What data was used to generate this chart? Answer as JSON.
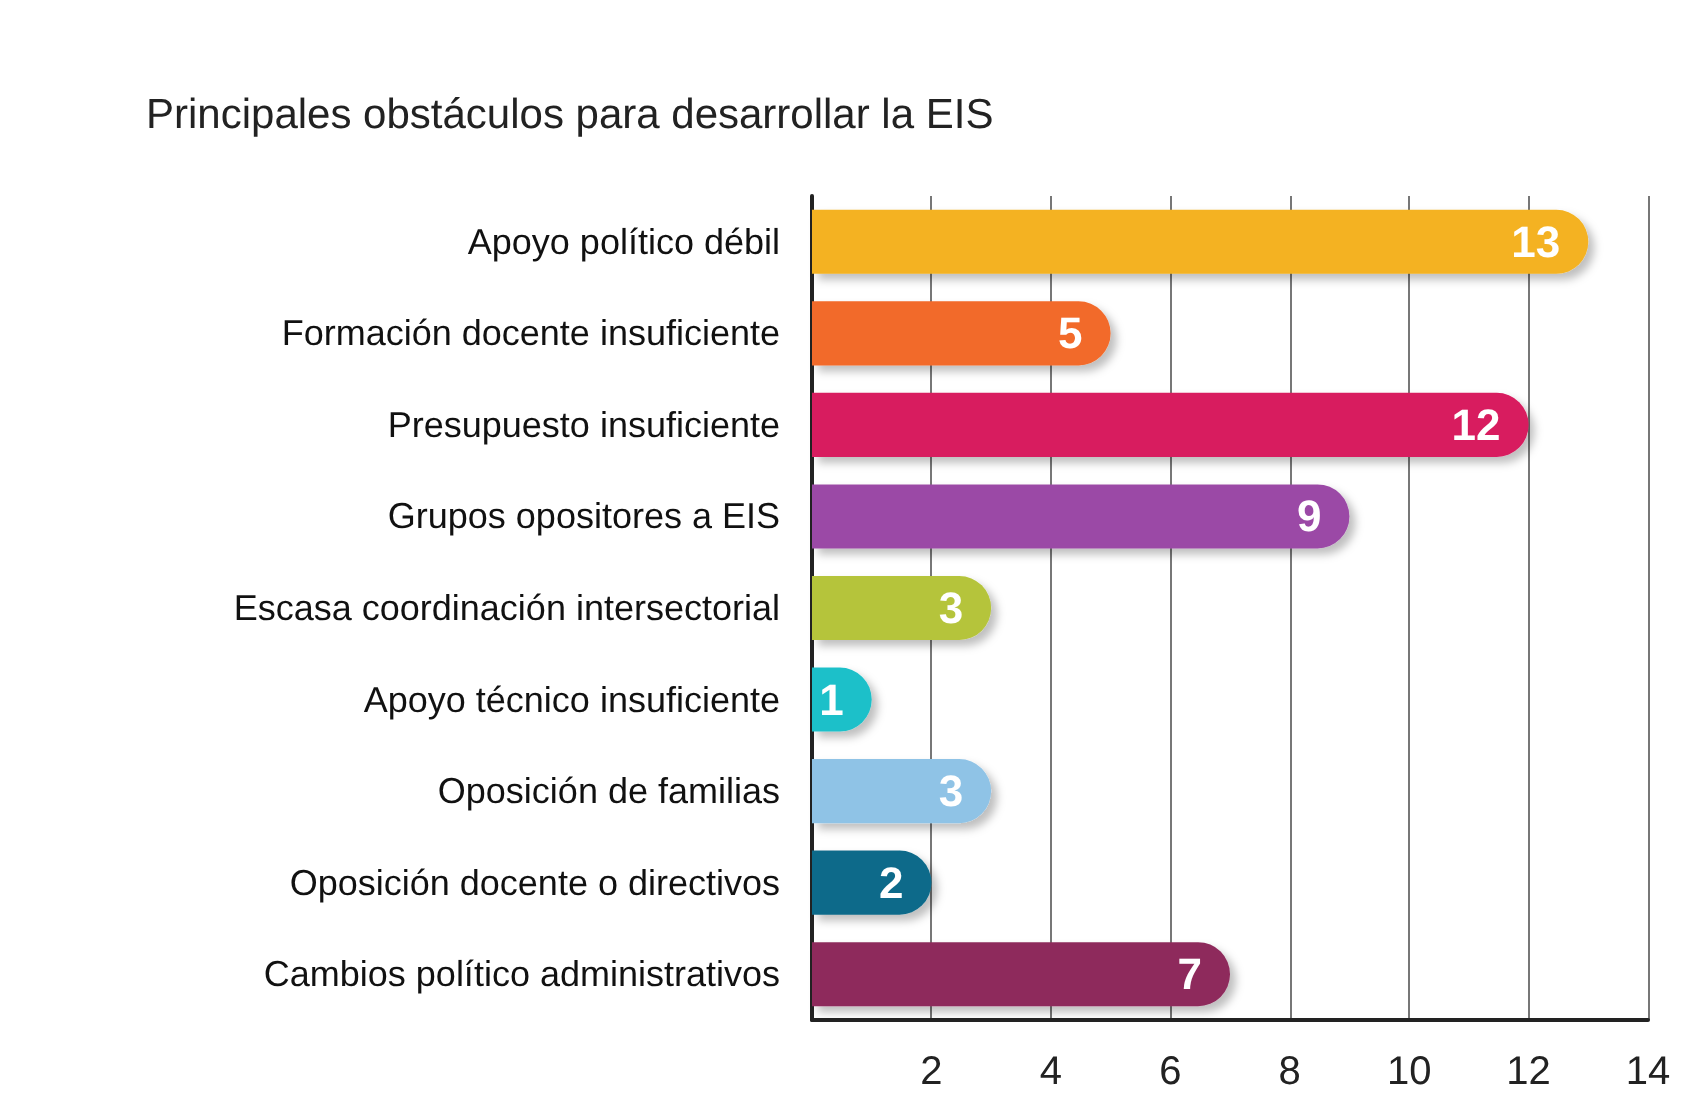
{
  "chart_data": {
    "type": "bar",
    "orientation": "horizontal",
    "title": "Principales obstáculos para desarrollar la EIS",
    "categories": [
      "Apoyo político débil",
      "Formación docente insuficiente",
      "Presupuesto insuficiente",
      "Grupos opositores a EIS",
      "Escasa coordinación intersectorial",
      "Apoyo técnico insuficiente",
      "Oposición de familias",
      "Oposición docente o directivos",
      "Cambios político administrativos"
    ],
    "values": [
      13,
      5,
      12,
      9,
      3,
      1,
      3,
      2,
      7
    ],
    "colors": [
      "#f4b223",
      "#f26a2a",
      "#d81b5f",
      "#9b4aa6",
      "#b5c43a",
      "#1ec0c9",
      "#8fc3e6",
      "#0e6b8a",
      "#8e2b5c"
    ],
    "xlim": [
      0,
      14
    ],
    "xticks": [
      {
        "value": 0,
        "label": null
      },
      2,
      4,
      6,
      8,
      10,
      12,
      14
    ],
    "grid": "x",
    "data_labels": true
  }
}
